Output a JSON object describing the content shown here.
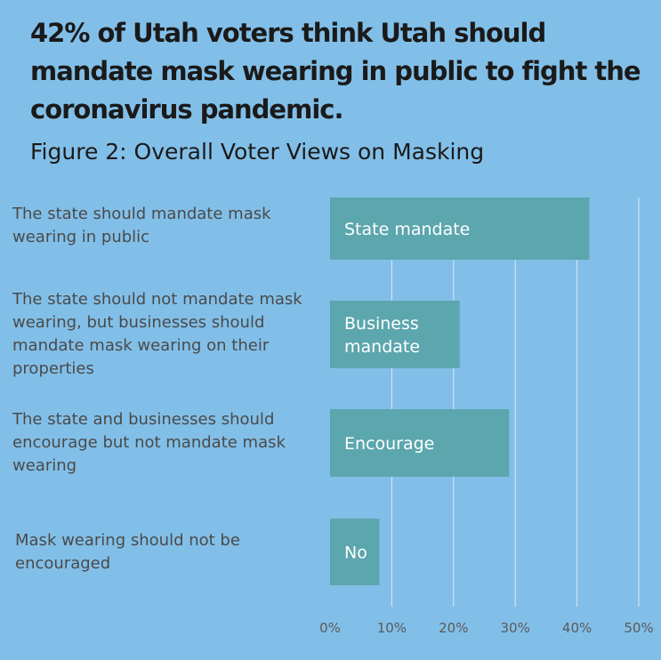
{
  "headline": "42% of Utah voters think Utah should mandate mask wearing in public to fight the coronavirus pandemic.",
  "subtitle": "Figure 2: Overall Voter Views on Masking",
  "colors": {
    "background": "#82bfe8",
    "bar": "#5ca6ae",
    "grid": "#dbe9f3"
  },
  "chart_data": {
    "type": "bar",
    "orientation": "horizontal",
    "title": "Figure 2: Overall Voter Views on Masking",
    "categories": [
      "The state should mandate mask wearing in public",
      "The state should not mandate mask wearing, but businesses should mandate mask wearing on their properties",
      "The state and businesses should encourage but not mandate mask wearing",
      "Mask wearing should not be encouraged"
    ],
    "bar_labels": [
      [
        "State mandate"
      ],
      [
        "Business",
        "mandate"
      ],
      [
        "Encourage"
      ],
      [
        "No"
      ]
    ],
    "values": [
      42,
      21,
      29,
      8
    ],
    "xlim": [
      0,
      50
    ],
    "ticks": [
      0,
      10,
      20,
      30,
      40,
      50
    ],
    "tick_labels": [
      "0%",
      "10%",
      "20%",
      "30%",
      "40%",
      "50%"
    ],
    "grid": true,
    "legend": "none"
  }
}
